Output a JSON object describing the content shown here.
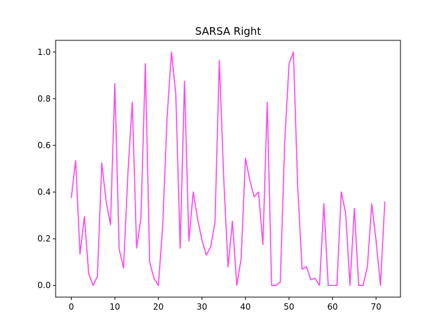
{
  "chart_data": {
    "type": "line",
    "title": "SARSA Right",
    "xlabel": "",
    "ylabel": "",
    "xlim": [
      -3.6,
      75.6
    ],
    "ylim": [
      -0.05,
      1.05
    ],
    "xticks": [
      0,
      10,
      20,
      30,
      40,
      50,
      60,
      70
    ],
    "yticks": [
      0.0,
      0.2,
      0.4,
      0.6,
      0.8,
      1.0
    ],
    "xtick_labels": [
      "0",
      "10",
      "20",
      "30",
      "40",
      "50",
      "60",
      "70"
    ],
    "ytick_labels": [
      "0.0",
      "0.2",
      "0.4",
      "0.6",
      "0.8",
      "1.0"
    ],
    "grid": false,
    "series": [
      {
        "color": "#ff44ee",
        "x": [
          0,
          1,
          2,
          3,
          4,
          5,
          6,
          7,
          8,
          9,
          10,
          11,
          12,
          13,
          14,
          15,
          16,
          17,
          18,
          19,
          20,
          21,
          22,
          23,
          24,
          25,
          26,
          27,
          28,
          29,
          30,
          31,
          32,
          33,
          34,
          35,
          36,
          37,
          38,
          39,
          40,
          41,
          42,
          43,
          44,
          45,
          46,
          47,
          48,
          49,
          50,
          51,
          52,
          53,
          54,
          55,
          56,
          57,
          58,
          59,
          60,
          61,
          62,
          63,
          64,
          65,
          66,
          67,
          68,
          69,
          70,
          71,
          72
        ],
        "y": [
          0.375,
          0.535,
          0.135,
          0.295,
          0.05,
          0.0,
          0.04,
          0.525,
          0.36,
          0.26,
          0.865,
          0.155,
          0.075,
          0.48,
          0.785,
          0.16,
          0.29,
          0.95,
          0.1,
          0.03,
          0.0,
          0.26,
          0.72,
          1.0,
          0.82,
          0.16,
          0.875,
          0.19,
          0.4,
          0.285,
          0.195,
          0.13,
          0.165,
          0.27,
          0.965,
          0.46,
          0.08,
          0.275,
          0.0,
          0.115,
          0.545,
          0.45,
          0.38,
          0.4,
          0.175,
          0.785,
          0.0,
          0.0,
          0.015,
          0.61,
          0.95,
          1.0,
          0.42,
          0.07,
          0.08,
          0.025,
          0.03,
          0.0,
          0.35,
          0.0,
          0.0,
          0.0,
          0.4,
          0.31,
          0.0,
          0.33,
          0.0,
          0.0,
          0.08,
          0.35,
          0.19,
          0.0,
          0.36
        ]
      }
    ]
  }
}
